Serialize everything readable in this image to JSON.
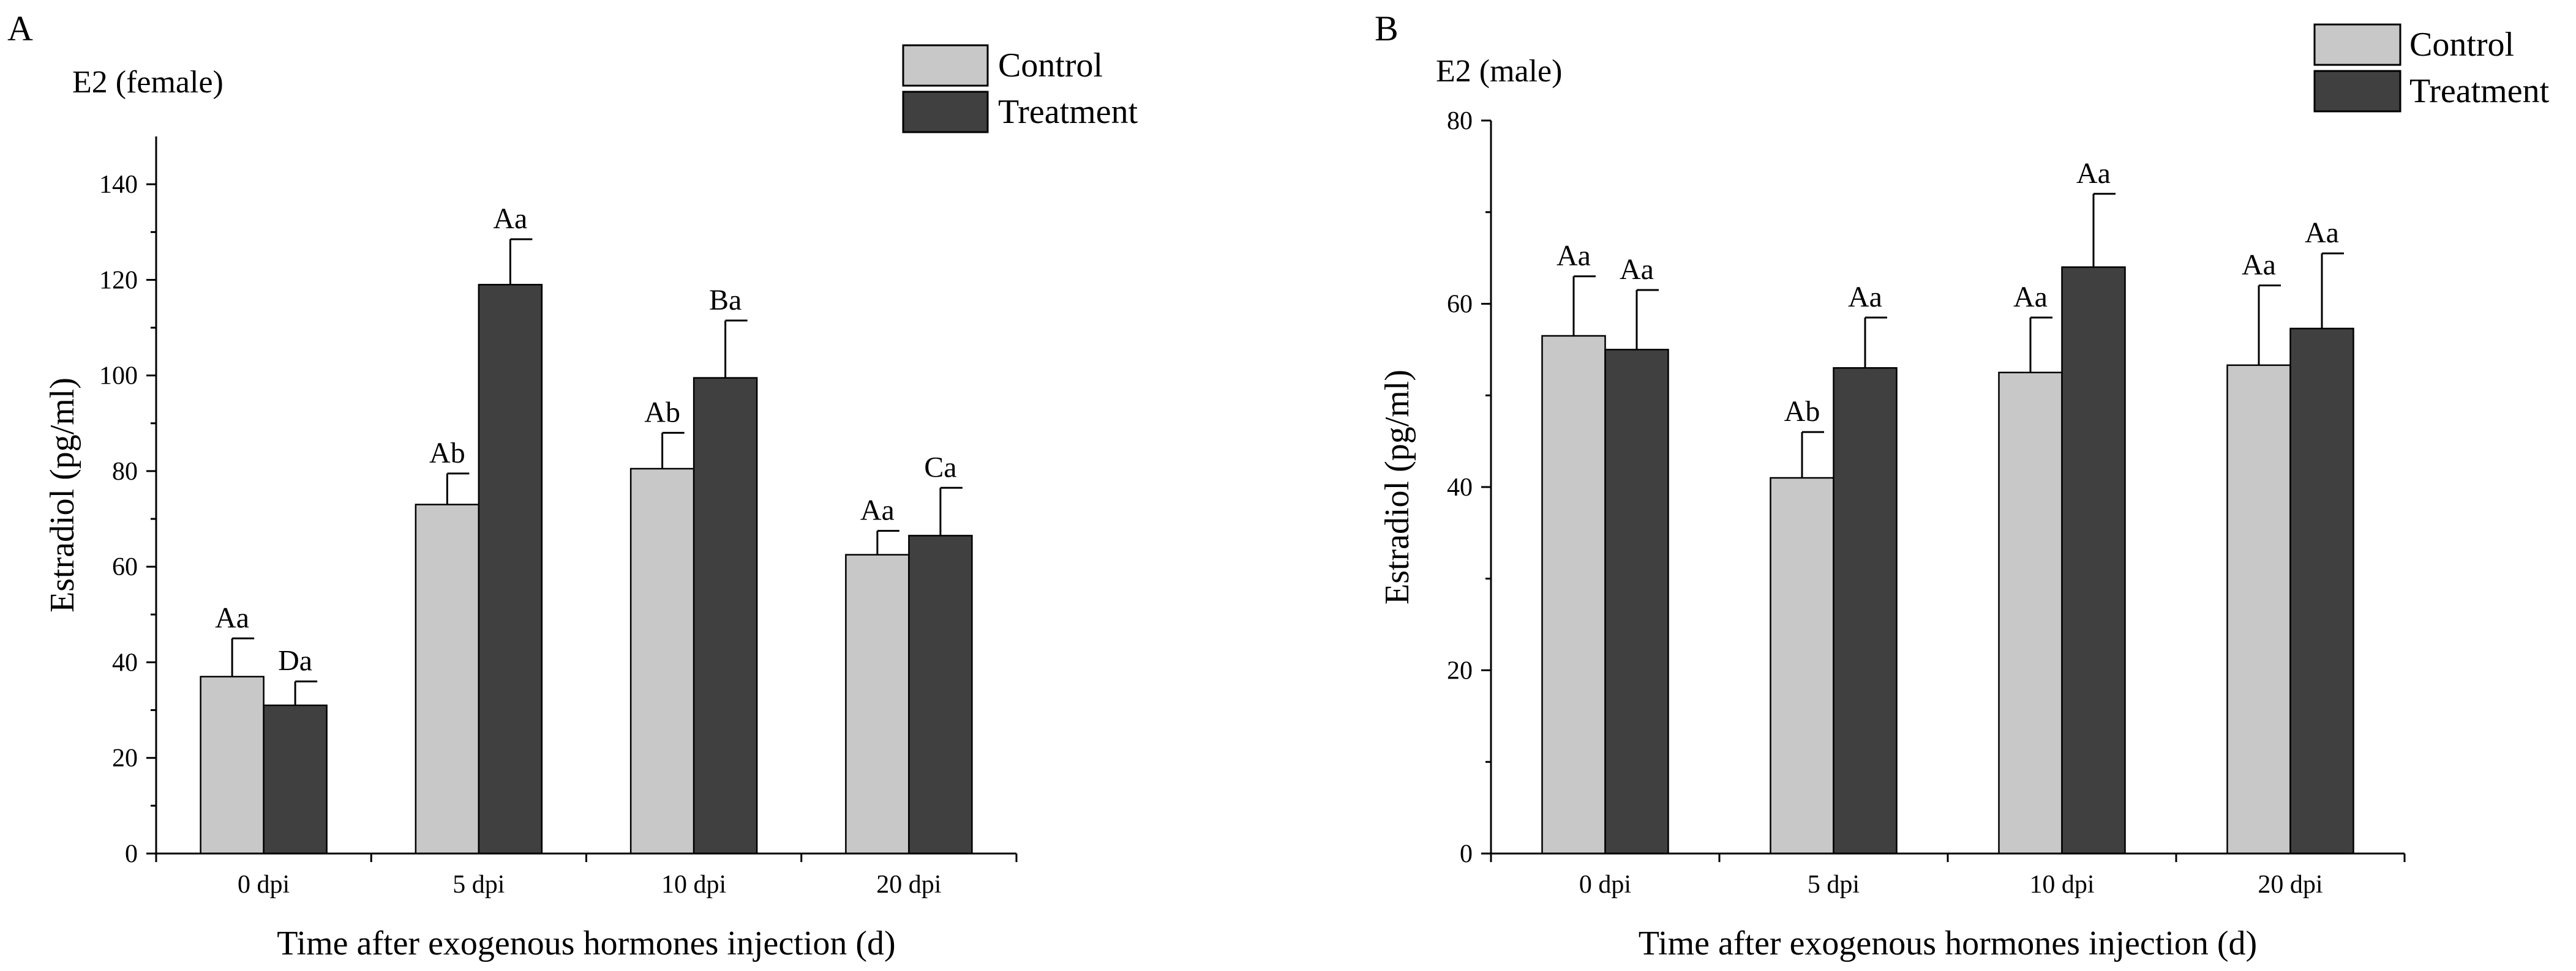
{
  "figure": {
    "colors": {
      "control": "#c8c8c8",
      "treatment": "#404040",
      "axis": "#000000"
    }
  },
  "chart_data": [
    {
      "panel_label": "A",
      "type": "bar",
      "title": "E2 (female)",
      "xlabel": "Time after exogenous hormones injection (d)",
      "ylabel": "Estradiol (pg/ml)",
      "categories": [
        "0 dpi",
        "5 dpi",
        "10 dpi",
        "20 dpi"
      ],
      "ylim": [
        0,
        150
      ],
      "yticks": [
        0,
        20,
        40,
        60,
        80,
        100,
        120,
        140
      ],
      "legend": [
        "Control",
        "Treatment"
      ],
      "legend_position": "top-right",
      "series": [
        {
          "name": "Control",
          "values": [
            37,
            73,
            80.5,
            62.5
          ],
          "errors": [
            8,
            6.5,
            7.5,
            5
          ],
          "labels": [
            "Aa",
            "Ab",
            "Ab",
            "Aa"
          ]
        },
        {
          "name": "Treatment",
          "values": [
            31,
            119,
            99.5,
            66.5
          ],
          "errors": [
            5,
            9.5,
            12,
            10
          ],
          "labels": [
            "Da",
            "Aa",
            "Ba",
            "Ca"
          ]
        }
      ]
    },
    {
      "panel_label": "B",
      "type": "bar",
      "title": "E2 (male)",
      "xlabel": "Time after exogenous hormones injection (d)",
      "ylabel": "Estradiol (pg/ml)",
      "categories": [
        "0 dpi",
        "5 dpi",
        "10 dpi",
        "20 dpi"
      ],
      "ylim": [
        0,
        80
      ],
      "yticks": [
        0,
        20,
        40,
        60,
        80
      ],
      "legend": [
        "Control",
        "Treatment"
      ],
      "legend_position": "top-right",
      "series": [
        {
          "name": "Control",
          "values": [
            56.5,
            41,
            52.5,
            53.3
          ],
          "errors": [
            6.5,
            5,
            6,
            8.7
          ],
          "labels": [
            "Aa",
            "Ab",
            "Aa",
            "Aa"
          ]
        },
        {
          "name": "Treatment",
          "values": [
            55,
            53,
            64,
            57.3
          ],
          "errors": [
            6.5,
            5.5,
            8,
            8.2
          ],
          "labels": [
            "Aa",
            "Aa",
            "Aa",
            "Aa"
          ]
        }
      ]
    }
  ]
}
